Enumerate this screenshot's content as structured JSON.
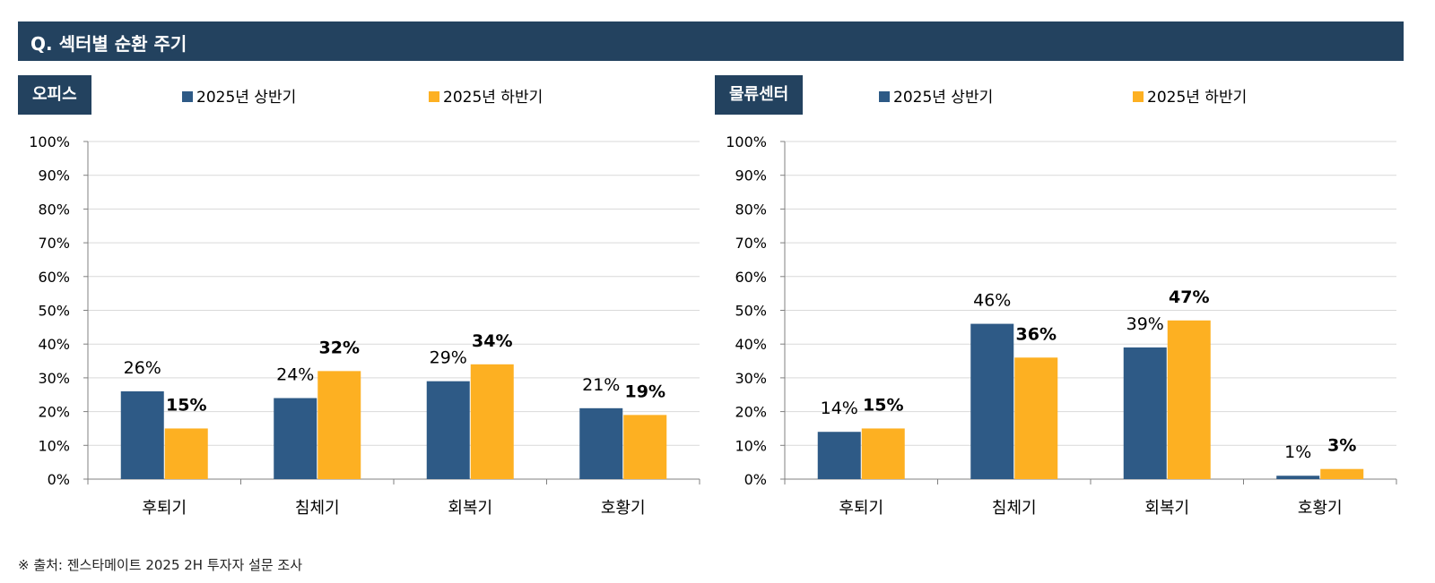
{
  "header": {
    "title": "Q. 섹터별 순환 주기"
  },
  "source": "※ 출처: 젠스타메이트 2025 2H 투자자 설문 조사",
  "colors": {
    "series_1": "#2e5a86",
    "series_2": "#fdb022",
    "header_bg": "#23425f"
  },
  "chart_data": [
    {
      "type": "bar",
      "title": "오피스",
      "categories": [
        "후퇴기",
        "침체기",
        "회복기",
        "호황기"
      ],
      "series": [
        {
          "name": "2025년 상반기",
          "values": [
            26,
            24,
            29,
            21
          ],
          "labels": [
            "26%",
            "24%",
            "29%",
            "21%"
          ]
        },
        {
          "name": "2025년 하반기",
          "values": [
            15,
            32,
            34,
            19
          ],
          "labels": [
            "15%",
            "32%",
            "34%",
            "19%"
          ]
        }
      ],
      "yticks": [
        "0%",
        "10%",
        "20%",
        "30%",
        "40%",
        "50%",
        "60%",
        "70%",
        "80%",
        "90%",
        "100%"
      ],
      "ylim": [
        0,
        100
      ],
      "grid": true,
      "legend": "top"
    },
    {
      "type": "bar",
      "title": "물류센터",
      "categories": [
        "후퇴기",
        "침체기",
        "회복기",
        "호황기"
      ],
      "series": [
        {
          "name": "2025년 상반기",
          "values": [
            14,
            46,
            39,
            1
          ],
          "labels": [
            "14%",
            "46%",
            "39%",
            "1%"
          ]
        },
        {
          "name": "2025년 하반기",
          "values": [
            15,
            36,
            47,
            3
          ],
          "labels": [
            "15%",
            "36%",
            "47%",
            "3%"
          ]
        }
      ],
      "yticks": [
        "0%",
        "10%",
        "20%",
        "30%",
        "40%",
        "50%",
        "60%",
        "70%",
        "80%",
        "90%",
        "100%"
      ],
      "ylim": [
        0,
        100
      ],
      "grid": true,
      "legend": "top"
    }
  ]
}
